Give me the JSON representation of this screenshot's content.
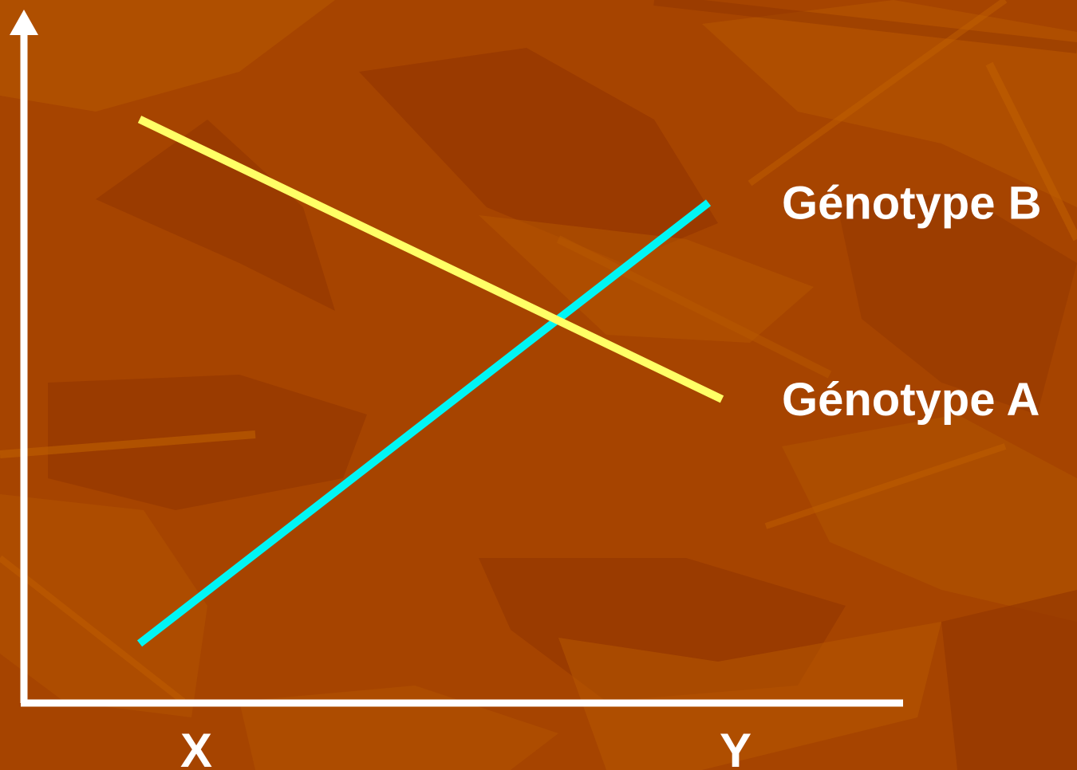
{
  "chart_data": {
    "type": "line",
    "categories": [
      "X",
      "Y"
    ],
    "series": [
      {
        "name": "Génotype B",
        "values": [
          1.0,
          8.4
        ],
        "color": "#00f5f5"
      },
      {
        "name": "Génotype A",
        "values": [
          9.8,
          5.1
        ],
        "color": "#ffff66"
      }
    ],
    "ylim": [
      0,
      11
    ],
    "title": "",
    "xlabel": "",
    "ylabel": "",
    "grid": false,
    "legend": "right"
  },
  "colors": {
    "background": "#a64400",
    "background_light": "#b85a00",
    "background_dark": "#963800",
    "axis": "#ffffff"
  }
}
